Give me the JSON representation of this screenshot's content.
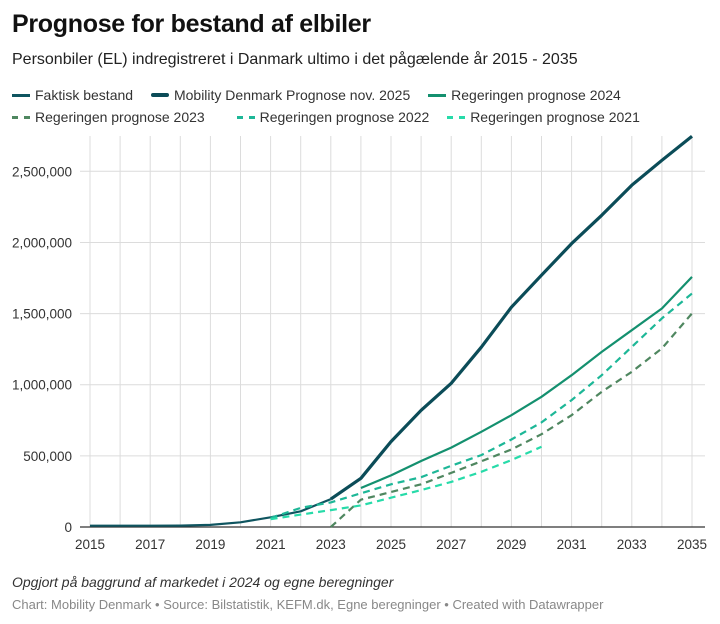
{
  "header": {
    "title": "Prognose for bestand af elbiler",
    "subtitle": "Personbiler (EL) indregistreret i Danmark ultimo i det pågælende år 2015 - 2035"
  },
  "footer": {
    "note": "Opgjort på baggrund af markedet i 2024 og egne beregninger",
    "byline": "Chart: Mobility Denmark • Source: Bilstatistik, KEFM.dk, Egne beregninger • Created with Datawrapper"
  },
  "chart_data": {
    "type": "line",
    "title": "Prognose for bestand af elbiler",
    "subtitle": "Personbiler (EL) indregistreret i Danmark ultimo i det pågælende år 2015 - 2035",
    "xlabel": "",
    "ylabel": "",
    "xlim": [
      2015,
      2035
    ],
    "ylim": [
      0,
      2750000
    ],
    "grid": true,
    "legend_position": "top",
    "x_ticks": [
      "2015",
      "2017",
      "2019",
      "2021",
      "2023",
      "2025",
      "2027",
      "2029",
      "2031",
      "2033",
      "2035"
    ],
    "y_ticks": [
      0,
      500000,
      1000000,
      1500000,
      2000000,
      2500000
    ],
    "y_tick_labels": [
      "0",
      "500,000",
      "1,000,000",
      "1,500,000",
      "2,000,000",
      "2,500,000"
    ],
    "series": [
      {
        "name": "Faktisk bestand",
        "color": "#0f5560",
        "style": "solid",
        "x": [
          2015,
          2016,
          2017,
          2018,
          2019,
          2020,
          2021,
          2022,
          2023
        ],
        "values": [
          9000,
          9000,
          9000,
          10000,
          15000,
          33000,
          68000,
          110000,
          196000
        ]
      },
      {
        "name": "Mobility Denmark Prognose nov. 2025",
        "color": "#0b4c58",
        "style": "thick",
        "x": [
          2023,
          2024,
          2025,
          2026,
          2027,
          2028,
          2029,
          2030,
          2031,
          2032,
          2033,
          2034,
          2035
        ],
        "values": [
          196000,
          342000,
          600000,
          820000,
          1010000,
          1264000,
          1545000,
          1770000,
          1992000,
          2191000,
          2402000,
          2577000,
          2746000
        ]
      },
      {
        "name": "Regeringen prognose 2024",
        "color": "#14906f",
        "style": "solid",
        "x": [
          2024,
          2025,
          2026,
          2027,
          2028,
          2029,
          2030,
          2031,
          2032,
          2033,
          2034,
          2035
        ],
        "values": [
          274000,
          363000,
          464000,
          558000,
          669000,
          786000,
          915000,
          1067000,
          1231000,
          1383000,
          1536000,
          1758000
        ]
      },
      {
        "name": "Regeringen prognose 2023",
        "color": "#4f8760",
        "style": "dashed",
        "x": [
          2023,
          2024,
          2025,
          2026,
          2027,
          2028,
          2029,
          2030,
          2031,
          2032,
          2033,
          2034,
          2035
        ],
        "values": [
          0,
          192000,
          246000,
          300000,
          380000,
          462000,
          545000,
          652000,
          786000,
          950000,
          1091000,
          1255000,
          1501000
        ]
      },
      {
        "name": "Regeringen prognose 2022",
        "color": "#1db797",
        "style": "dashed",
        "x": [
          2021,
          2022,
          2023,
          2024,
          2025,
          2026,
          2027,
          2028,
          2029,
          2030,
          2031,
          2032,
          2033,
          2034,
          2035
        ],
        "values": [
          64000,
          134000,
          173000,
          237000,
          300000,
          350000,
          430000,
          505000,
          615000,
          735000,
          892000,
          1067000,
          1266000,
          1466000,
          1641000
        ]
      },
      {
        "name": "Regeringen prognose 2021",
        "color": "#27dba9",
        "style": "dashed",
        "x": [
          2021,
          2022,
          2023,
          2024,
          2025,
          2026,
          2027,
          2028,
          2029,
          2030
        ],
        "values": [
          55000,
          87000,
          119000,
          152000,
          206000,
          259000,
          317000,
          388000,
          470000,
          564000
        ]
      }
    ]
  }
}
